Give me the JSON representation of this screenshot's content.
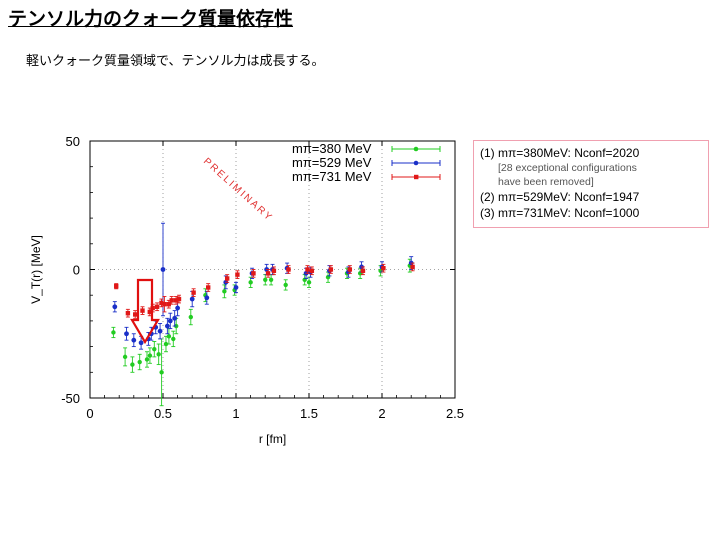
{
  "slide": {
    "title": "テンソル力のクォーク質量依存性",
    "subtitle": "軽いクォーク質量領域で、テンソル力は成長する。"
  },
  "info_box": {
    "line1": "(1) mπ=380MeV: Nconf=2020",
    "note1": "[28 exceptional configurations",
    "note2": "have  been removed]",
    "line2": "(2) mπ=529MeV: Nconf=1947",
    "line3": "(3) mπ=731MeV: Nconf=1000"
  },
  "chart_data": {
    "type": "scatter",
    "xlabel": "r [fm]",
    "ylabel": "V_T(r) [MeV]",
    "xlim": [
      0,
      2.5
    ],
    "ylim": [
      -50,
      50
    ],
    "xticks": [
      "0",
      "0.5",
      "1",
      "1.5",
      "2",
      "2.5"
    ],
    "yticks": [
      "50",
      "0",
      "-50"
    ],
    "grid": "dotted vertical lines at x=0.5,1,1.5,2 and horizontal at y=0",
    "legend_placement": "top-right",
    "watermark": "PRELIMINARY",
    "series": [
      {
        "name": "mπ=380 MeV",
        "color": "#22cc22",
        "points": [
          [
            0.17,
            -24.5,
            2.0
          ],
          [
            0.25,
            -34.0,
            3.5
          ],
          [
            0.3,
            -37.0,
            3.0
          ],
          [
            0.35,
            -36.0,
            3.0
          ],
          [
            0.4,
            -35.0,
            3.0
          ],
          [
            0.42,
            -33.5,
            3.0
          ],
          [
            0.45,
            -31.0,
            3.0
          ],
          [
            0.48,
            -33.0,
            4.0
          ],
          [
            0.5,
            -40.0,
            13.0
          ],
          [
            0.53,
            -29.0,
            3.0
          ],
          [
            0.55,
            -26.0,
            3.0
          ],
          [
            0.58,
            -27.0,
            3.0
          ],
          [
            0.6,
            -22.0,
            3.0
          ],
          [
            0.7,
            -18.5,
            3.0
          ],
          [
            0.8,
            -10.0,
            2.5
          ],
          [
            0.93,
            -8.5,
            2.5
          ],
          [
            1.0,
            -8.0,
            2.0
          ],
          [
            1.11,
            -5.0,
            2.0
          ],
          [
            1.21,
            -4.0,
            2.0
          ],
          [
            1.25,
            -4.0,
            2.0
          ],
          [
            1.35,
            -6.0,
            2.0
          ],
          [
            1.48,
            -4.0,
            2.0
          ],
          [
            1.51,
            -5.0,
            2.0
          ],
          [
            1.64,
            -3.0,
            2.0
          ],
          [
            1.77,
            -1.5,
            2.0
          ],
          [
            1.86,
            -1.5,
            2.0
          ],
          [
            2.0,
            -0.5,
            2.0
          ],
          [
            2.2,
            1.5,
            2.5
          ]
        ]
      },
      {
        "name": "mπ=529 MeV",
        "color": "#1a2fc8",
        "points": [
          [
            0.17,
            -14.5,
            2.0
          ],
          [
            0.25,
            -25.0,
            2.5
          ],
          [
            0.3,
            -27.5,
            2.5
          ],
          [
            0.35,
            -28.5,
            2.5
          ],
          [
            0.4,
            -27.0,
            2.5
          ],
          [
            0.42,
            -25.0,
            2.5
          ],
          [
            0.45,
            -22.5,
            2.5
          ],
          [
            0.48,
            -24.0,
            3.0
          ],
          [
            0.5,
            0.0,
            18.0
          ],
          [
            0.53,
            -22.0,
            3.0
          ],
          [
            0.55,
            -20.0,
            3.0
          ],
          [
            0.58,
            -19.0,
            3.0
          ],
          [
            0.6,
            -15.0,
            3.0
          ],
          [
            0.7,
            -11.5,
            3.0
          ],
          [
            0.8,
            -11.0,
            2.5
          ],
          [
            0.93,
            -5.0,
            2.5
          ],
          [
            1.0,
            -7.0,
            2.0
          ],
          [
            1.11,
            -1.5,
            2.0
          ],
          [
            1.21,
            0.0,
            2.0
          ],
          [
            1.25,
            0.0,
            2.0
          ],
          [
            1.35,
            0.5,
            2.0
          ],
          [
            1.48,
            -1.5,
            2.0
          ],
          [
            1.51,
            -1.0,
            2.0
          ],
          [
            1.64,
            -0.5,
            2.0
          ],
          [
            1.77,
            -1.0,
            2.0
          ],
          [
            1.86,
            1.0,
            2.0
          ],
          [
            2.0,
            1.0,
            2.0
          ],
          [
            2.2,
            2.5,
            2.5
          ]
        ]
      },
      {
        "name": "mπ=731 MeV",
        "color": "#e01818",
        "points": [
          [
            0.17,
            -6.5,
            1.0
          ],
          [
            0.25,
            -17.0,
            1.5
          ],
          [
            0.3,
            -17.5,
            1.5
          ],
          [
            0.35,
            -16.0,
            1.5
          ],
          [
            0.4,
            -16.5,
            1.5
          ],
          [
            0.42,
            -15.0,
            1.5
          ],
          [
            0.45,
            -14.5,
            1.5
          ],
          [
            0.48,
            -13.0,
            1.5
          ],
          [
            0.5,
            -13.5,
            3.0
          ],
          [
            0.53,
            -13.5,
            1.5
          ],
          [
            0.55,
            -12.0,
            1.5
          ],
          [
            0.58,
            -12.0,
            1.5
          ],
          [
            0.6,
            -11.5,
            1.5
          ],
          [
            0.7,
            -9.0,
            1.5
          ],
          [
            0.8,
            -7.0,
            1.5
          ],
          [
            0.93,
            -3.5,
            1.5
          ],
          [
            1.0,
            -2.0,
            1.5
          ],
          [
            1.11,
            -1.5,
            1.5
          ],
          [
            1.21,
            -1.5,
            1.5
          ],
          [
            1.25,
            -0.5,
            1.5
          ],
          [
            1.35,
            0.0,
            1.5
          ],
          [
            1.48,
            0.0,
            1.5
          ],
          [
            1.51,
            -0.5,
            1.5
          ],
          [
            1.64,
            0.0,
            1.5
          ],
          [
            1.77,
            0.0,
            1.5
          ],
          [
            1.86,
            -0.5,
            1.5
          ],
          [
            2.0,
            0.5,
            1.5
          ],
          [
            2.2,
            1.0,
            1.5
          ]
        ]
      }
    ],
    "annotation": "red down-arrow pointing at minimum near r=0.4 fm"
  }
}
